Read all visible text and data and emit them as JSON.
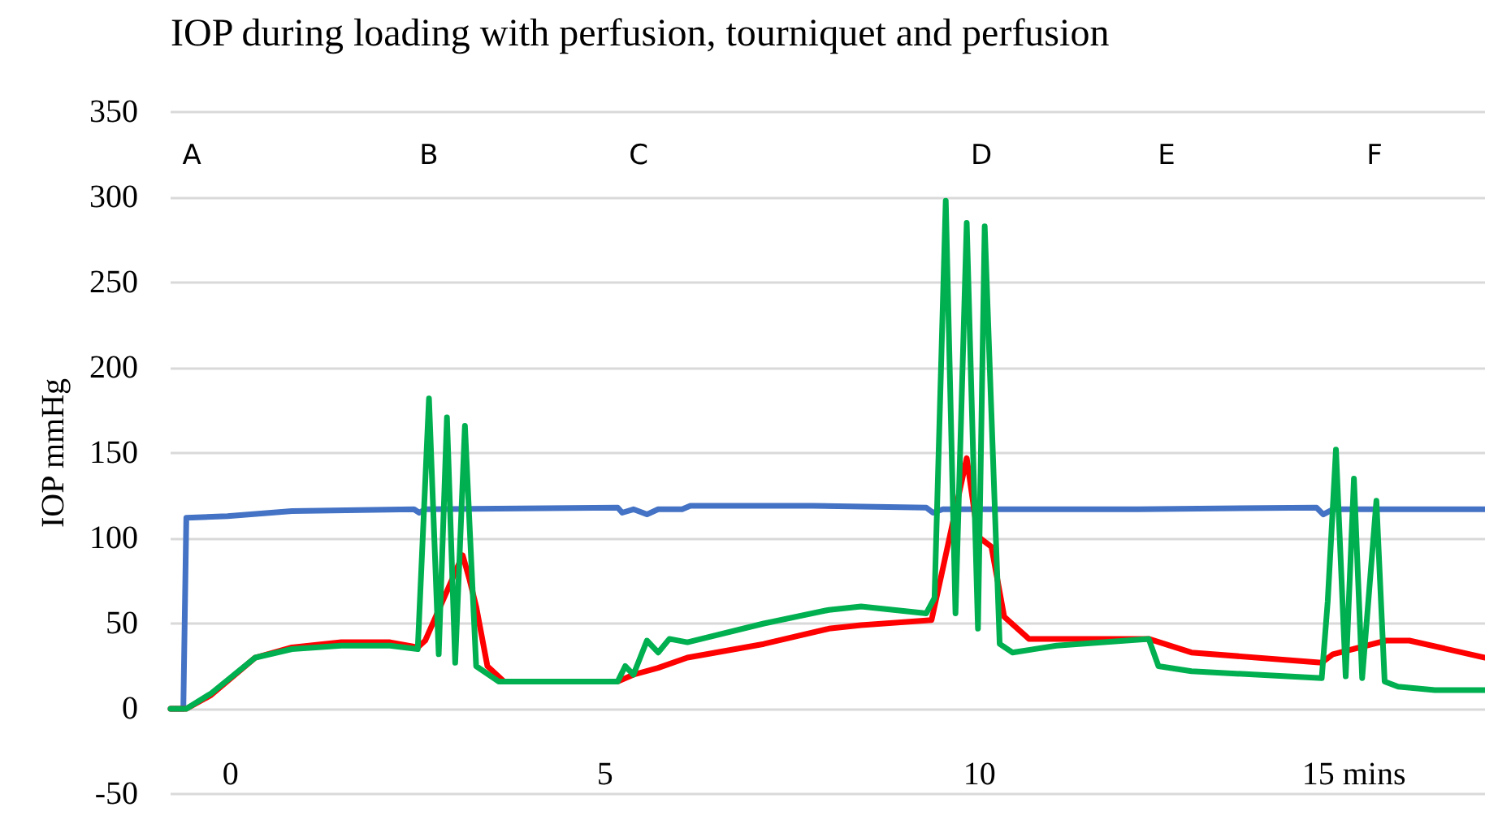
{
  "chart_data": {
    "type": "line",
    "title": "IOP during loading with perfusion, tourniquet and perfusion",
    "ylabel": "IOP mmHg",
    "xlim": [
      -0.8,
      16.75
    ],
    "xticks": [
      {
        "value": 0,
        "label": "0"
      },
      5,
      10,
      {
        "value": 15,
        "label": "15 mins"
      }
    ],
    "ylim": [
      -50,
      350
    ],
    "yticks": [
      -50,
      0,
      50,
      100,
      150,
      200,
      250,
      300,
      350
    ],
    "grid": "y",
    "marker": "none",
    "line_style": "solid",
    "annotations": [
      "A",
      "B",
      "C",
      "D",
      "E",
      "F"
    ],
    "series": [
      {
        "color": "#4472c4",
        "x": [
          -0.8,
          -0.63,
          -0.59,
          -0.04,
          0.82,
          2.45,
          2.52,
          2.6,
          5.17,
          5.23,
          5.38,
          5.56,
          5.71,
          6.03,
          6.14,
          7.77,
          9.29,
          9.38,
          9.51,
          12.11,
          14.5,
          14.59,
          14.72,
          16.75
        ],
        "values": [
          0,
          0,
          112,
          113,
          116,
          117,
          115,
          117,
          118,
          115,
          117,
          114,
          117,
          117,
          119,
          119,
          118,
          115,
          117,
          117,
          118,
          114,
          117,
          117
        ]
      },
      {
        "color": "#ff0000",
        "x": [
          -0.8,
          -0.59,
          -0.26,
          0.33,
          0.82,
          1.48,
          2.13,
          2.5,
          2.6,
          3.1,
          3.19,
          3.28,
          3.43,
          3.65,
          5.17,
          5.38,
          5.71,
          6.1,
          7.12,
          7.99,
          8.42,
          9.36,
          9.51,
          9.83,
          9.98,
          10.16,
          10.33,
          10.66,
          12.26,
          12.83,
          14.57,
          14.72,
          15.43,
          15.74,
          16.75
        ],
        "values": [
          0,
          0,
          8,
          30,
          36,
          39,
          39,
          36,
          40,
          90,
          76,
          60,
          25,
          16,
          16,
          20,
          24,
          30,
          38,
          47,
          49,
          52,
          82,
          147,
          101,
          95,
          54,
          41,
          41,
          33,
          27,
          32,
          40,
          40,
          30
        ]
      },
      {
        "color": "#00b050",
        "x": [
          -0.8,
          -0.59,
          -0.26,
          0.33,
          0.82,
          1.48,
          2.13,
          2.5,
          2.65,
          2.78,
          2.89,
          3.0,
          3.13,
          3.28,
          3.58,
          5.17,
          5.27,
          5.38,
          5.56,
          5.71,
          5.86,
          6.1,
          7.12,
          7.99,
          8.42,
          9.29,
          9.4,
          9.55,
          9.68,
          9.83,
          9.98,
          10.07,
          10.27,
          10.44,
          11.03,
          12.26,
          12.39,
          12.83,
          14.57,
          14.65,
          14.76,
          14.89,
          15.0,
          15.11,
          15.3,
          15.41,
          15.59,
          16.08,
          16.75
        ],
        "values": [
          0,
          0,
          9,
          30,
          35,
          37,
          37,
          35,
          182,
          32,
          171,
          27,
          166,
          25,
          16,
          16,
          25,
          20,
          40,
          33,
          41,
          39,
          50,
          58,
          60,
          56,
          65,
          298,
          56,
          285,
          47,
          283,
          38,
          33,
          37,
          41,
          25,
          22,
          18,
          63,
          152,
          19,
          135,
          18,
          122,
          16,
          13,
          11,
          11
        ]
      }
    ]
  }
}
